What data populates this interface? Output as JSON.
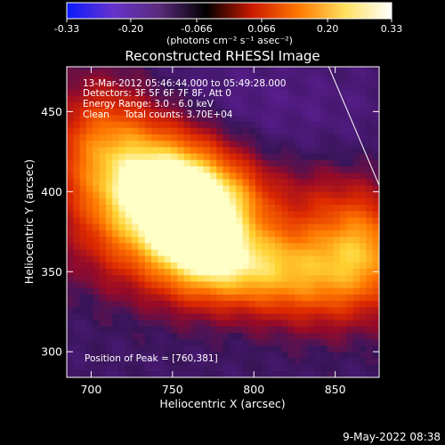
{
  "chart_data": {
    "type": "heatmap",
    "title": "Reconstructed RHESSI Image",
    "xlabel": "Heliocentric X (arcsec)",
    "ylabel": "Heliocentric Y (arcsec)",
    "xlim": [
      685,
      877
    ],
    "ylim": [
      284,
      478
    ],
    "x_ticks": [
      700,
      750,
      800,
      850
    ],
    "y_ticks": [
      300,
      350,
      400,
      450
    ],
    "colorbar": {
      "label": "(photons cm⁻² s⁻¹ asec⁻²)",
      "ticks": [
        "-0.33",
        "-0.20",
        "-0.066",
        "0.066",
        "0.20",
        "0.33"
      ],
      "range": [
        -0.33,
        0.33
      ],
      "colors": [
        "#0a1aff",
        "#6633cc",
        "#5a2a7a",
        "#000000",
        "#cc1a00",
        "#ff7a00",
        "#ffe060",
        "#ffffff"
      ]
    },
    "annotations": {
      "time_range": "13-Mar-2012 05:46:44.000 to 05:49:28.000",
      "detectors": "Detectors: 3F 5F 6F 7F 8F, Att 0",
      "energy": "Energy Range: 3.0 - 6.0 keV",
      "method": "Clean     Total counts: 3.70E+04",
      "peak": "Position of Peak = [760,381]"
    },
    "peak": [
      760,
      381
    ],
    "limb_line": [
      [
        846,
        478
      ],
      [
        877,
        404
      ]
    ]
  },
  "footer": {
    "date": "9-May-2022 08:38"
  }
}
